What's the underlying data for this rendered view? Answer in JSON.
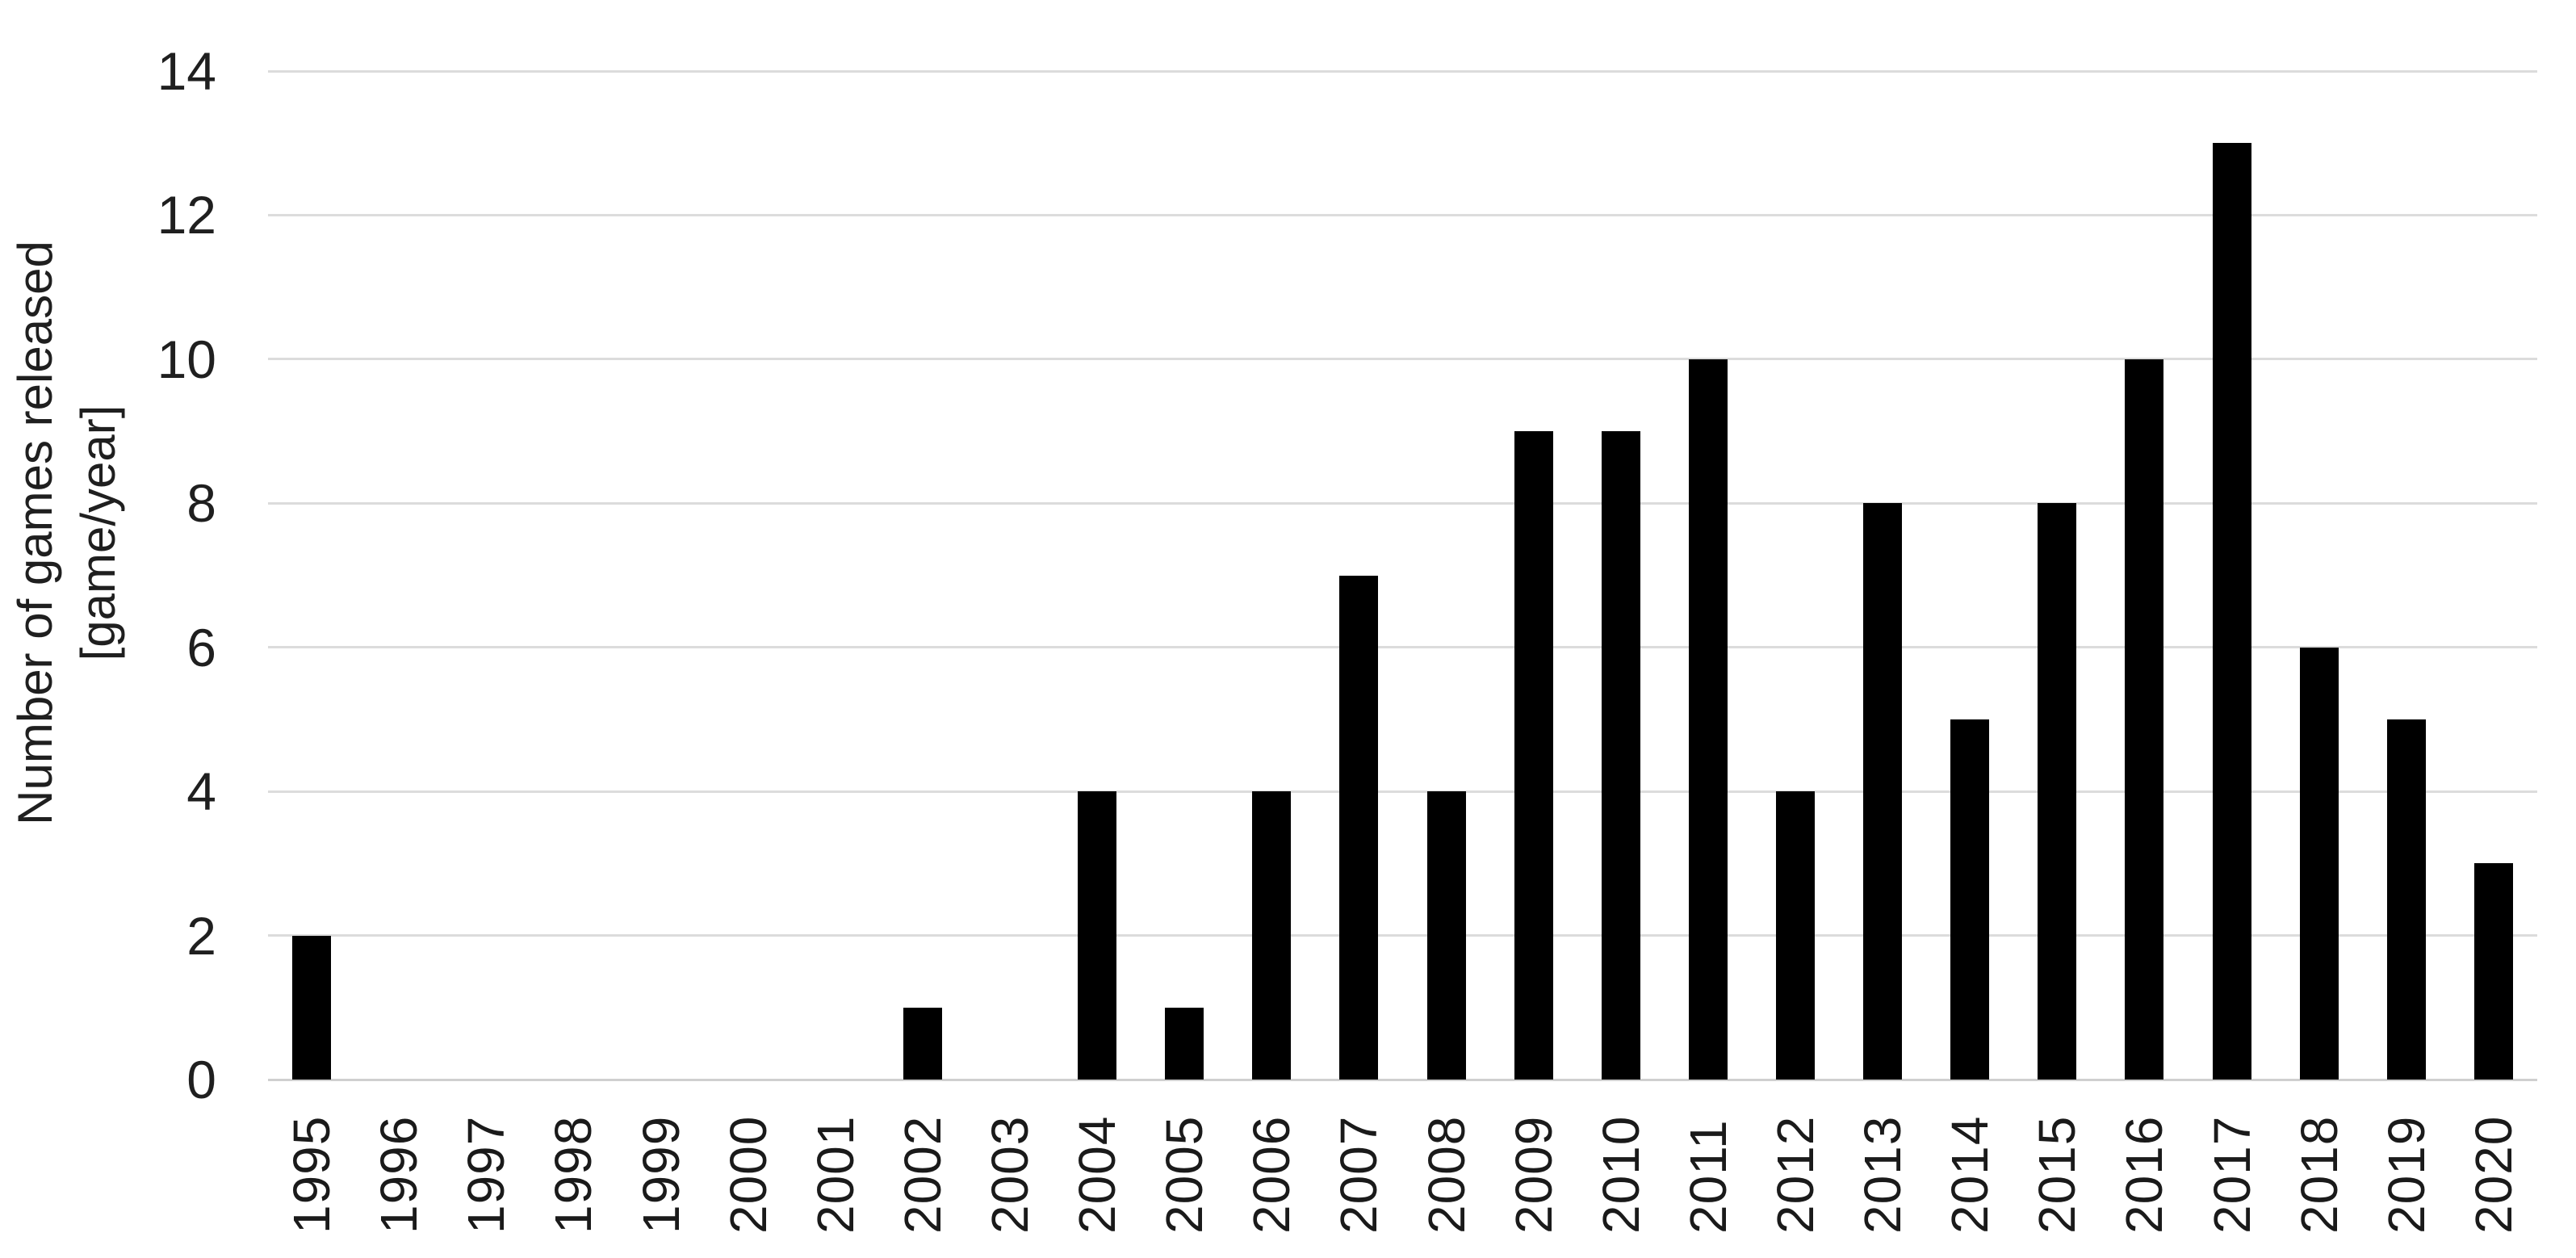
{
  "chart_data": {
    "type": "bar",
    "title": "",
    "xlabel": "",
    "ylabel": "Number of games released [game/year]",
    "ylabel_line1": "Number of games released",
    "ylabel_line2": "[game/year]",
    "categories": [
      "1995",
      "1996",
      "1997",
      "1998",
      "1999",
      "2000",
      "2001",
      "2002",
      "2003",
      "2004",
      "2005",
      "2006",
      "2007",
      "2008",
      "2009",
      "2010",
      "2011",
      "2012",
      "2013",
      "2014",
      "2015",
      "2016",
      "2017",
      "2018",
      "2019",
      "2020"
    ],
    "values": [
      2,
      0,
      0,
      0,
      0,
      0,
      0,
      1,
      0,
      4,
      1,
      4,
      7,
      4,
      9,
      9,
      10,
      4,
      8,
      5,
      8,
      10,
      13,
      6,
      5,
      3
    ],
    "ylim": [
      0,
      14
    ],
    "yticks": [
      0,
      2,
      4,
      6,
      8,
      10,
      12,
      14
    ],
    "grid": "horizontal",
    "legend": "none",
    "bar_color": "#000000",
    "gridline_color": "#dcdcdc",
    "axis_line_color": "#cfcfcf",
    "text_color": "#1f1f1f",
    "background_color": "#ffffff"
  }
}
